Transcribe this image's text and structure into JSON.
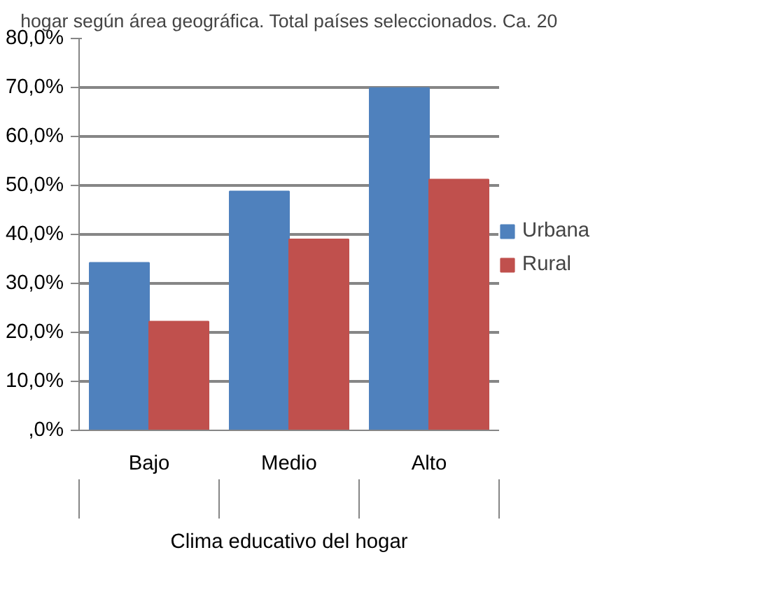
{
  "chart_data": {
    "type": "bar",
    "title": "hogar según área geográfica. Total países seleccionados. Ca. 20",
    "xlabel": "Clima educativo del hogar",
    "categories": [
      "Bajo",
      "Medio",
      "Alto"
    ],
    "series": [
      {
        "name": "Urbana",
        "color": "#4f81bd",
        "values": [
          34.2,
          48.8,
          69.9
        ]
      },
      {
        "name": "Rural",
        "color": "#c0504d",
        "values": [
          22.2,
          39.0,
          51.2
        ]
      }
    ],
    "ylim": [
      0,
      80
    ],
    "yticks": [
      {
        "value": 0,
        "label": ",0%"
      },
      {
        "value": 10,
        "label": "10,0%"
      },
      {
        "value": 20,
        "label": "20,0%"
      },
      {
        "value": 30,
        "label": "30,0%"
      },
      {
        "value": 40,
        "label": "40,0%"
      },
      {
        "value": 50,
        "label": "50,0%"
      },
      {
        "value": 60,
        "label": "60,0%"
      },
      {
        "value": 70,
        "label": "70,0%"
      },
      {
        "value": 80,
        "label": "80,0%"
      }
    ],
    "grid": "y",
    "legend": "right"
  }
}
